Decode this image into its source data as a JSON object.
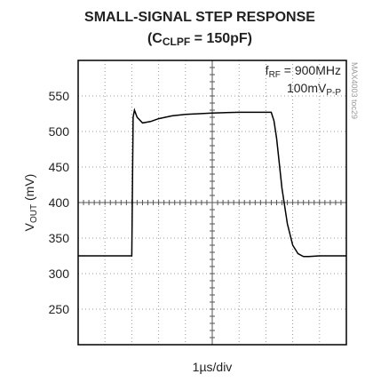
{
  "chart_data": {
    "type": "line",
    "title": "SMALL-SIGNAL STEP RESPONSE",
    "subtitle": [
      "(C",
      "CLPF",
      " = 150pF)"
    ],
    "ylabel": [
      "V",
      "OUT",
      " (mV)"
    ],
    "xlabel": "1µs/div",
    "annotations": [
      [
        "f",
        "RF",
        " = 900MHz"
      ],
      [
        "100mV",
        "P-P"
      ]
    ],
    "side_note": "MAX4003 toc29",
    "x": [
      0,
      1,
      1.95,
      2.0,
      2.05,
      2.1,
      2.2,
      2.4,
      2.7,
      3.0,
      3.5,
      4,
      5,
      6,
      7,
      7.2,
      7.3,
      7.4,
      7.5,
      7.6,
      7.8,
      8.0,
      8.2,
      8.4,
      8.6,
      9,
      10
    ],
    "series": [
      {
        "color": "#000000",
        "values": [
          325,
          325,
          325,
          325,
          520,
          530,
          520,
          512,
          514,
          518,
          522,
          524,
          526,
          527,
          527,
          527,
          515,
          490,
          455,
          420,
          370,
          340,
          328,
          324,
          324,
          325,
          325
        ]
      }
    ],
    "xlim": [
      0,
      10
    ],
    "xticks": [
      0,
      1,
      2,
      3,
      4,
      5,
      6,
      7,
      8,
      9,
      10
    ],
    "ylim": [
      200,
      600
    ],
    "yticks": [
      250,
      300,
      350,
      400,
      450,
      500,
      550
    ],
    "grid": true
  }
}
